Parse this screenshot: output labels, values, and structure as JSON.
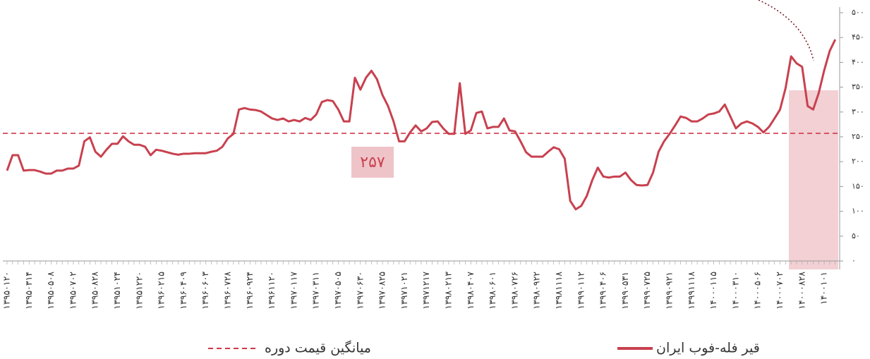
{
  "chart_data": {
    "type": "line",
    "categories": [
      "۱۳۹۵۰۱۲۰",
      null,
      null,
      null,
      "۱۳۹۵۰۳۱۴",
      null,
      null,
      null,
      "۱۳۹۵۰۵۰۸",
      null,
      null,
      null,
      "۱۳۹۵۰۷۰۲",
      null,
      null,
      null,
      "۱۳۹۵۰۸۲۸",
      null,
      null,
      null,
      "۱۳۹۵۱۰۲۴",
      null,
      null,
      null,
      "۱۳۹۵۱۲۲۰",
      null,
      null,
      null,
      "۱۳۹۶۰۲۱۵",
      null,
      null,
      null,
      "۱۳۹۶۰۴۰۹",
      null,
      null,
      null,
      "۱۳۹۶۰۶۰۳",
      null,
      null,
      null,
      "۱۳۹۶۰۷۲۸",
      null,
      null,
      null,
      "۱۳۹۶۰۹۲۴",
      null,
      null,
      null,
      "۱۳۹۶۱۱۲۰",
      null,
      null,
      null,
      "۱۳۹۷۰۱۱۷",
      null,
      null,
      null,
      "۱۳۹۷۰۳۱۱",
      null,
      null,
      null,
      "۱۳۹۷۰۵۰۵",
      null,
      null,
      null,
      "۱۳۹۷۰۶۳۰",
      null,
      null,
      null,
      "۱۳۹۷۰۸۲۵",
      null,
      null,
      null,
      "۱۳۹۷۱۰۲۱",
      null,
      null,
      null,
      "۱۳۹۷۱۲۱۷",
      null,
      null,
      null,
      "۱۳۹۸۰۲۱۳",
      null,
      null,
      null,
      "۱۳۹۸۰۴۰۷",
      null,
      null,
      null,
      "۱۳۹۸۰۶۰۱",
      null,
      null,
      null,
      "۱۳۹۸۰۷۲۶",
      null,
      null,
      null,
      "۱۳۹۸۰۹۲۲",
      null,
      null,
      null,
      "۱۳۹۸۱۱۱۸",
      null,
      null,
      null,
      "۱۳۹۹۰۱۱۲",
      null,
      null,
      null,
      "۱۳۹۹۰۴۰۶",
      null,
      null,
      null,
      "۱۳۹۹۰۵۳۱",
      null,
      null,
      null,
      "۱۳۹۹۰۷۲۵",
      null,
      null,
      null,
      "۱۳۹۹۰۹۲۱",
      null,
      null,
      null,
      "۱۳۹۹۱۱۱۸",
      null,
      null,
      null,
      "۱۴۰۰۰۱۱۵",
      null,
      null,
      null,
      "۱۴۰۰۰۳۱۰",
      null,
      null,
      null,
      "۱۴۰۰۰۵۰۶",
      null,
      null,
      null,
      "۱۴۰۰۰۷۰۲",
      null,
      null,
      null,
      "۱۴۰۰۰۸۲۸",
      null,
      null,
      null,
      "۱۴۰۰۱۰۱",
      null,
      null
    ],
    "series": [
      {
        "name": "قیر فله-فوب ایران",
        "color": "#c8414f",
        "values": [
          182,
          213,
          213,
          182,
          183,
          183,
          180,
          176,
          176,
          182,
          182,
          186,
          186,
          192,
          241,
          249,
          220,
          210,
          224,
          236,
          236,
          251,
          241,
          234,
          234,
          230,
          213,
          224,
          222,
          219,
          216,
          214,
          216,
          216,
          217,
          217,
          217,
          220,
          222,
          230,
          247,
          256,
          305,
          308,
          305,
          304,
          301,
          294,
          287,
          284,
          287,
          281,
          284,
          281,
          288,
          284,
          295,
          320,
          324,
          322,
          305,
          281,
          281,
          369,
          345,
          369,
          383,
          366,
          334,
          312,
          281,
          241,
          241,
          259,
          273,
          261,
          267,
          280,
          281,
          267,
          256,
          256,
          358,
          256,
          263,
          298,
          301,
          267,
          270,
          270,
          287,
          263,
          261,
          241,
          219,
          210,
          210,
          210,
          220,
          229,
          225,
          206,
          121,
          104,
          111,
          131,
          163,
          188,
          170,
          168,
          170,
          170,
          178,
          163,
          153,
          152,
          153,
          178,
          220,
          241,
          256,
          273,
          291,
          288,
          281,
          281,
          287,
          295,
          297,
          301,
          315,
          291,
          267,
          277,
          281,
          277,
          270,
          259,
          270,
          287,
          305,
          348,
          412,
          398,
          391,
          312,
          305,
          338,
          384,
          423,
          446
        ]
      }
    ],
    "average": {
      "name": "میانگین قیمت دوره",
      "value": 257,
      "label": "۲۵۷",
      "color": "#d0384a"
    },
    "ylim": [
      0,
      500
    ],
    "yticks": [
      {
        "value": 0,
        "label": "۰"
      },
      {
        "value": 50,
        "label": "۵۰"
      },
      {
        "value": 100,
        "label": "۱۰۰"
      },
      {
        "value": 150,
        "label": "۱۵۰"
      },
      {
        "value": 200,
        "label": "۲۰۰"
      },
      {
        "value": 250,
        "label": "۲۵۰"
      },
      {
        "value": 300,
        "label": "۳۰۰"
      },
      {
        "value": 350,
        "label": "۳۵۰"
      },
      {
        "value": 400,
        "label": "۴۰۰"
      },
      {
        "value": 450,
        "label": "۴۵۰"
      },
      {
        "value": 500,
        "label": "۵۰۰"
      }
    ]
  }
}
